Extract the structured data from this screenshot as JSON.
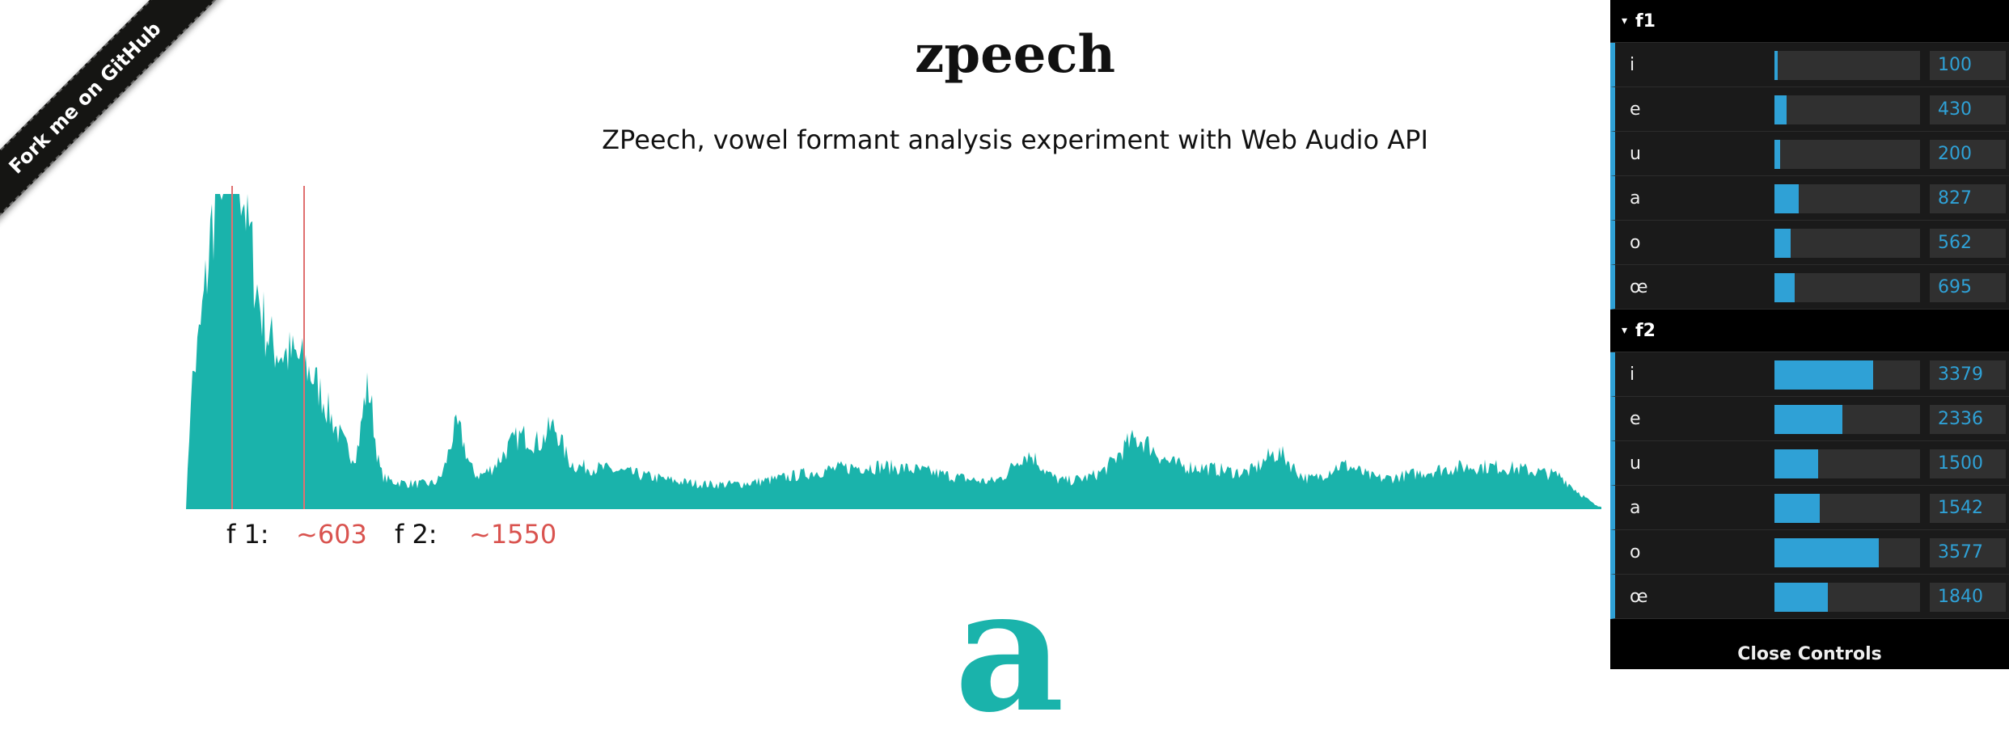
{
  "ribbon": {
    "label": "Fork me on GitHub"
  },
  "page": {
    "title": "zpeech",
    "subtitle": "ZPeech, vowel formant analysis experiment with Web Audio API"
  },
  "formants": {
    "f1_label": "f 1:",
    "f1_value": "~603",
    "f2_label": "f 2:",
    "f2_value": "~1550"
  },
  "vowel_glyph": "a",
  "colors": {
    "spectrum": "#1ab3ab",
    "marker": "#e07070",
    "slider": "#2fa1d6",
    "formant_text": "#d9534f"
  },
  "controls": {
    "folders": [
      {
        "name": "f1",
        "max": 5000,
        "rows": [
          {
            "label": "i",
            "value": "100"
          },
          {
            "label": "e",
            "value": "430"
          },
          {
            "label": "u",
            "value": "200"
          },
          {
            "label": "a",
            "value": "827"
          },
          {
            "label": "o",
            "value": "562"
          },
          {
            "label": "œ",
            "value": "695"
          }
        ]
      },
      {
        "name": "f2",
        "max": 5000,
        "rows": [
          {
            "label": "i",
            "value": "3379"
          },
          {
            "label": "e",
            "value": "2336"
          },
          {
            "label": "u",
            "value": "1500"
          },
          {
            "label": "a",
            "value": "1542"
          },
          {
            "label": "o",
            "value": "3577"
          },
          {
            "label": "œ",
            "value": "1840"
          }
        ]
      }
    ],
    "close_label": "Close Controls"
  }
}
